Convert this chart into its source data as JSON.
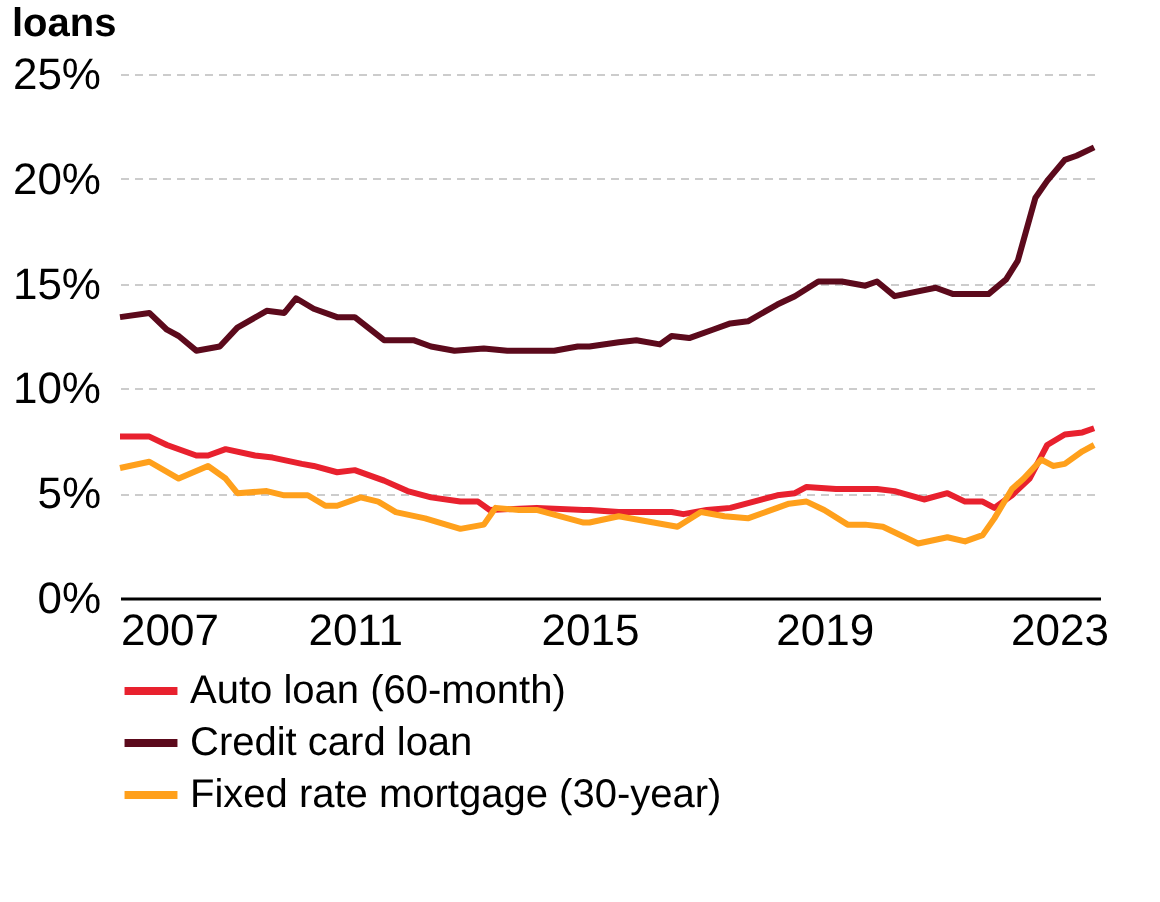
{
  "chart_data": {
    "type": "line",
    "title": "loans",
    "xlim": [
      2007,
      2023.7
    ],
    "xticks": [
      2007,
      2011,
      2015,
      2019,
      2023
    ],
    "ylim": [
      0,
      25
    ],
    "yticks": [
      {
        "value": 0,
        "label": "0%"
      },
      {
        "value": 5,
        "label": "5%"
      },
      {
        "value": 10,
        "label": "10%"
      },
      {
        "value": 15,
        "label": "15%"
      },
      {
        "value": 20,
        "label": "20%"
      },
      {
        "value": 25,
        "label": "25%"
      }
    ],
    "grid": "y",
    "legend": "bottom",
    "marker": "none",
    "line_style": "solid",
    "series": [
      {
        "name": "Auto loan (60-month)",
        "color": "#e8212e",
        "x": [
          2007.0,
          2007.5,
          2007.8,
          2008.3,
          2008.5,
          2008.8,
          2009.3,
          2009.6,
          2010.1,
          2010.3,
          2010.7,
          2011.0,
          2011.5,
          2011.9,
          2012.3,
          2012.8,
          2013.1,
          2013.3,
          2014.1,
          2014.9,
          2015.0,
          2015.5,
          2016.4,
          2016.6,
          2017.0,
          2017.4,
          2017.8,
          2018.2,
          2018.5,
          2018.7,
          2019.2,
          2019.7,
          2019.9,
          2020.2,
          2020.7,
          2021.1,
          2021.4,
          2021.7,
          2021.9,
          2022.2,
          2022.5,
          2022.8,
          2023.1,
          2023.4,
          2023.6
        ],
        "values": [
          7.7,
          7.7,
          7.3,
          6.8,
          6.8,
          7.1,
          6.8,
          6.7,
          6.4,
          6.3,
          6.0,
          6.1,
          5.6,
          5.1,
          4.8,
          4.6,
          4.6,
          4.2,
          4.3,
          4.2,
          4.2,
          4.1,
          4.1,
          4.0,
          4.2,
          4.3,
          4.6,
          4.9,
          5.0,
          5.3,
          5.2,
          5.2,
          5.2,
          5.1,
          4.7,
          5.0,
          4.6,
          4.6,
          4.3,
          4.9,
          5.7,
          7.3,
          7.8,
          7.9,
          8.1
        ]
      },
      {
        "name": "Credit card loan",
        "color": "#5c0a1c",
        "x": [
          2007.0,
          2007.5,
          2007.8,
          2008.0,
          2008.3,
          2008.7,
          2009.0,
          2009.5,
          2009.8,
          2010.0,
          2010.3,
          2010.7,
          2011.0,
          2011.5,
          2012.0,
          2012.3,
          2012.7,
          2013.2,
          2013.6,
          2014.4,
          2014.8,
          2015.0,
          2015.5,
          2015.8,
          2016.2,
          2016.4,
          2016.7,
          2017.1,
          2017.4,
          2017.7,
          2018.2,
          2018.5,
          2018.9,
          2019.3,
          2019.7,
          2019.9,
          2020.2,
          2020.9,
          2021.2,
          2021.8,
          2022.1,
          2022.3,
          2022.6,
          2022.8,
          2023.1,
          2023.3,
          2023.6
        ],
        "values": [
          13.4,
          13.6,
          12.8,
          12.5,
          11.8,
          12.0,
          12.9,
          13.7,
          13.6,
          14.3,
          13.8,
          13.4,
          13.4,
          12.3,
          12.3,
          12.0,
          11.8,
          11.9,
          11.8,
          11.8,
          12.0,
          12.0,
          12.2,
          12.3,
          12.1,
          12.5,
          12.4,
          12.8,
          13.1,
          13.2,
          14.0,
          14.4,
          15.1,
          15.1,
          14.9,
          15.1,
          14.4,
          14.8,
          14.5,
          14.5,
          15.2,
          16.1,
          19.1,
          19.9,
          20.9,
          21.1,
          21.5
        ]
      },
      {
        "name": "Fixed rate mortgage (30-year)",
        "color": "#ffa01c",
        "x": [
          2007.0,
          2007.5,
          2008.0,
          2008.5,
          2008.8,
          2009.0,
          2009.5,
          2009.8,
          2010.2,
          2010.5,
          2010.7,
          2011.1,
          2011.4,
          2011.7,
          2012.2,
          2012.8,
          2013.2,
          2013.4,
          2013.8,
          2014.1,
          2014.9,
          2015.0,
          2015.5,
          2015.9,
          2016.5,
          2016.9,
          2017.3,
          2017.7,
          2018.2,
          2018.4,
          2018.7,
          2019.0,
          2019.4,
          2019.7,
          2020.0,
          2020.6,
          2021.1,
          2021.4,
          2021.7,
          2021.9,
          2022.2,
          2022.4,
          2022.7,
          2022.9,
          2023.1,
          2023.4,
          2023.6
        ],
        "values": [
          6.2,
          6.5,
          5.7,
          6.3,
          5.7,
          5.0,
          5.1,
          4.9,
          4.9,
          4.4,
          4.4,
          4.8,
          4.6,
          4.1,
          3.8,
          3.3,
          3.5,
          4.3,
          4.2,
          4.2,
          3.6,
          3.6,
          3.9,
          3.7,
          3.4,
          4.1,
          3.9,
          3.8,
          4.3,
          4.5,
          4.6,
          4.2,
          3.5,
          3.5,
          3.4,
          2.6,
          2.9,
          2.7,
          3.0,
          3.8,
          5.2,
          5.7,
          6.6,
          6.3,
          6.4,
          7.0,
          7.3
        ]
      }
    ]
  }
}
